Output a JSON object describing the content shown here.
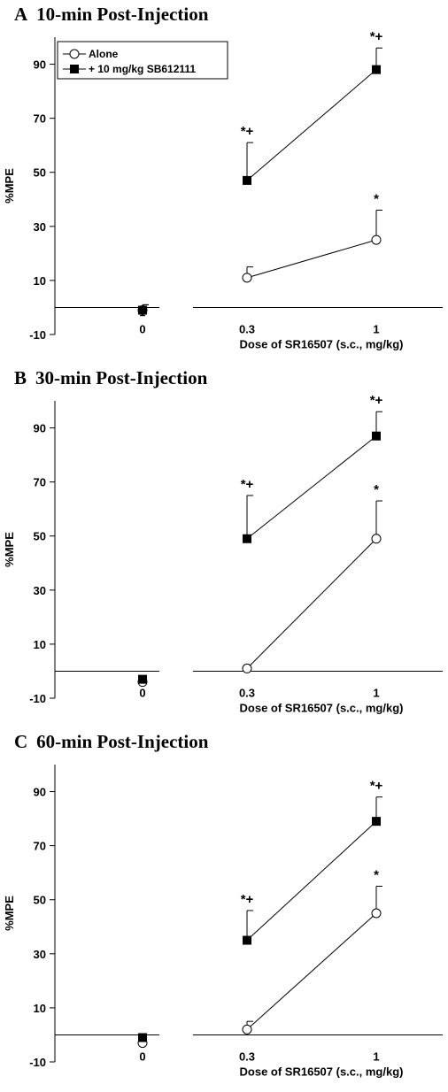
{
  "chart_data": [
    {
      "type": "line",
      "panel_letter": "A",
      "title": "10-min Post-Injection",
      "ylabel": "%MPE",
      "xlabel": "Dose of SR16507 (s.c., mg/kg)",
      "ylim": [
        -10,
        100
      ],
      "yticks": [
        -10,
        10,
        30,
        50,
        70,
        90
      ],
      "x_categories": [
        "0",
        "0.3",
        "1"
      ],
      "legend": {
        "show": true,
        "placement": "top-left"
      },
      "series": [
        {
          "name": "Alone",
          "marker": "open-circle",
          "points": [
            {
              "x": "0",
              "y": -1,
              "err": 2
            },
            {
              "x": "0.3",
              "y": 11,
              "err": 4,
              "sig": ""
            },
            {
              "x": "1",
              "y": 25,
              "err": 11,
              "sig": "*"
            }
          ]
        },
        {
          "name": "+ 10 mg/kg SB612111",
          "marker": "filled-square",
          "points": [
            {
              "x": "0",
              "y": -1,
              "err": 2
            },
            {
              "x": "0.3",
              "y": 47,
              "err": 14,
              "sig": "*+"
            },
            {
              "x": "1",
              "y": 88,
              "err": 8,
              "sig": "*+"
            }
          ]
        }
      ]
    },
    {
      "type": "line",
      "panel_letter": "B",
      "title": "30-min Post-Injection",
      "ylabel": "%MPE",
      "xlabel": "Dose of SR16507 (s.c., mg/kg)",
      "ylim": [
        -10,
        100
      ],
      "yticks": [
        -10,
        10,
        30,
        50,
        70,
        90
      ],
      "x_categories": [
        "0",
        "0.3",
        "1"
      ],
      "legend": {
        "show": false
      },
      "series": [
        {
          "name": "Alone",
          "marker": "open-circle",
          "points": [
            {
              "x": "0",
              "y": -4,
              "err": 0
            },
            {
              "x": "0.3",
              "y": 1,
              "err": 0,
              "sig": ""
            },
            {
              "x": "1",
              "y": 49,
              "err": 14,
              "sig": "*"
            }
          ]
        },
        {
          "name": "+ 10 mg/kg SB612111",
          "marker": "filled-square",
          "points": [
            {
              "x": "0",
              "y": -3,
              "err": 0
            },
            {
              "x": "0.3",
              "y": 49,
              "err": 16,
              "sig": "*+"
            },
            {
              "x": "1",
              "y": 87,
              "err": 9,
              "sig": "*+"
            }
          ]
        }
      ]
    },
    {
      "type": "line",
      "panel_letter": "C",
      "title": "60-min Post-Injection",
      "ylabel": "%MPE",
      "xlabel": "Dose of SR16507 (s.c., mg/kg)",
      "ylim": [
        -10,
        100
      ],
      "yticks": [
        -10,
        10,
        30,
        50,
        70,
        90
      ],
      "x_categories": [
        "0",
        "0.3",
        "1"
      ],
      "legend": {
        "show": false
      },
      "series": [
        {
          "name": "Alone",
          "marker": "open-circle",
          "points": [
            {
              "x": "0",
              "y": -3,
              "err": 0
            },
            {
              "x": "0.3",
              "y": 2,
              "err": 3,
              "sig": ""
            },
            {
              "x": "1",
              "y": 45,
              "err": 10,
              "sig": "*"
            }
          ]
        },
        {
          "name": "+ 10 mg/kg SB612111",
          "marker": "filled-square",
          "points": [
            {
              "x": "0",
              "y": -1,
              "err": 0
            },
            {
              "x": "0.3",
              "y": 35,
              "err": 11,
              "sig": "*+"
            },
            {
              "x": "1",
              "y": 79,
              "err": 9,
              "sig": "*+"
            }
          ]
        }
      ]
    }
  ]
}
